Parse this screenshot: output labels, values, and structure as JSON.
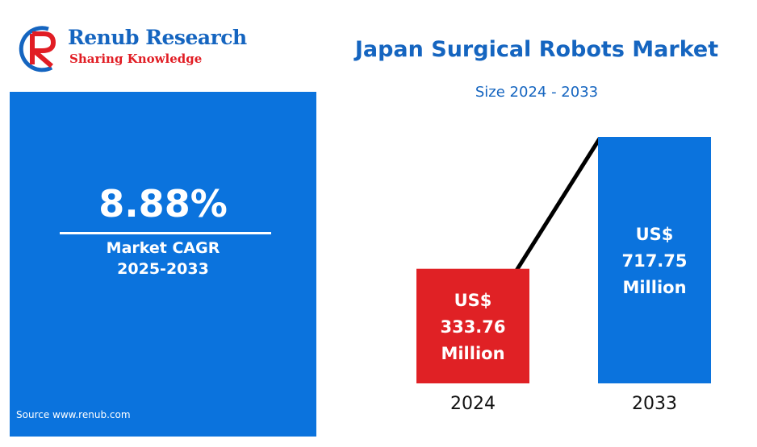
{
  "logo": {
    "brand": "Renub Research",
    "tagline": "Sharing Knowledge"
  },
  "cagr": {
    "value": "8.88%",
    "label_line1": "Market CAGR",
    "label_line2": "2025-2033"
  },
  "source": "Source  www.renub.com",
  "colors": {
    "brand_blue": "#1565c0",
    "panel_blue": "#0b73dd",
    "bar_red": "#e02125",
    "bar_blue": "#0b73dd",
    "logo_red": "#e11d24"
  },
  "chart_data": {
    "type": "bar",
    "title": "Japan Surgical Robots Market",
    "subtitle": "Size 2024 - 2033",
    "categories": [
      "2024",
      "2033"
    ],
    "values": [
      333.76,
      717.75
    ],
    "value_labels": [
      [
        "US$",
        "333.76",
        "Million"
      ],
      [
        "US$",
        "717.75",
        "Million"
      ]
    ],
    "bar_colors": [
      "#e02125",
      "#0b73dd"
    ],
    "unit": "US$ Million",
    "connector_line": true,
    "grid": false
  }
}
